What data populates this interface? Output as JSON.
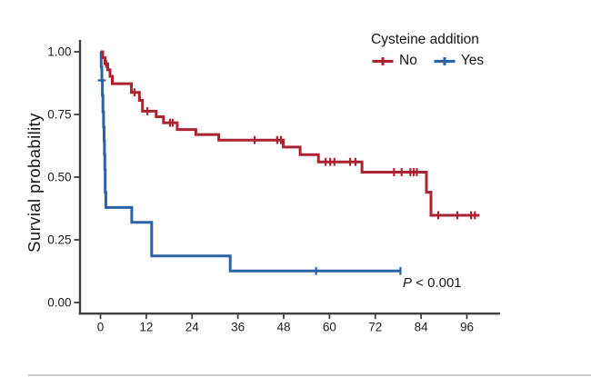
{
  "figure": {
    "background": "#ffffff",
    "bottom_border_color": "#cbcbcb"
  },
  "chart_data": {
    "type": "line",
    "subtype": "kaplan_meier_step",
    "title": "",
    "xlabel": "",
    "ylabel": "Survial probability",
    "xlim": [
      -5,
      105
    ],
    "ylim": [
      0,
      1.02
    ],
    "xticks": [
      0,
      12,
      24,
      36,
      48,
      60,
      72,
      84,
      96
    ],
    "yticks": [
      0,
      0.25,
      0.5,
      0.75,
      1
    ],
    "ytick_labels": [
      "0.00",
      "0.25",
      "0.50",
      "0.75",
      "1.00"
    ],
    "grid": false,
    "axis_color": "#3f3f3f",
    "tick_label_color": "#1c1c1c",
    "legend": {
      "title": "Cysteine addition",
      "position": "top-right",
      "entries": [
        {
          "label": "No",
          "color": "#ab2230"
        },
        {
          "label": "Yes",
          "color": "#2d63a5"
        }
      ]
    },
    "annotation": {
      "p_symbol": "P",
      "p_text": " < 0.001"
    },
    "series": [
      {
        "name": "No",
        "color": "#ab2230",
        "steps": [
          [
            0,
            1.0
          ],
          [
            0.6,
            0.976
          ],
          [
            1.2,
            0.952
          ],
          [
            1.9,
            0.928
          ],
          [
            2.5,
            0.902
          ],
          [
            3.1,
            0.873
          ],
          [
            8.1,
            0.838
          ],
          [
            10.2,
            0.806
          ],
          [
            11.0,
            0.763
          ],
          [
            14.6,
            0.741
          ],
          [
            16.5,
            0.717
          ],
          [
            20.1,
            0.69
          ],
          [
            25.0,
            0.67
          ],
          [
            31.0,
            0.648
          ],
          [
            47.9,
            0.62
          ],
          [
            52.3,
            0.59
          ],
          [
            57.1,
            0.561
          ],
          [
            68.5,
            0.52
          ],
          [
            85.4,
            0.44
          ],
          [
            86.6,
            0.348
          ],
          [
            99.3,
            0.348
          ]
        ],
        "censors": [
          [
            1.5,
            0.952
          ],
          [
            8.9,
            0.838
          ],
          [
            12.3,
            0.763
          ],
          [
            18.2,
            0.717
          ],
          [
            18.9,
            0.717
          ],
          [
            40.4,
            0.648
          ],
          [
            46.3,
            0.648
          ],
          [
            47.3,
            0.648
          ],
          [
            59.0,
            0.561
          ],
          [
            60.2,
            0.561
          ],
          [
            61.3,
            0.561
          ],
          [
            65.4,
            0.561
          ],
          [
            66.8,
            0.561
          ],
          [
            76.9,
            0.52
          ],
          [
            78.9,
            0.52
          ],
          [
            81.2,
            0.52
          ],
          [
            82.1,
            0.52
          ],
          [
            82.9,
            0.52
          ],
          [
            88.5,
            0.348
          ],
          [
            93.5,
            0.348
          ],
          [
            97.1,
            0.348
          ],
          [
            98.1,
            0.348
          ]
        ]
      },
      {
        "name": "Yes",
        "color": "#2d63a5",
        "steps": [
          [
            0,
            1.0
          ],
          [
            0.2,
            0.94
          ],
          [
            0.35,
            0.886
          ],
          [
            0.5,
            0.826
          ],
          [
            0.65,
            0.76
          ],
          [
            0.8,
            0.7
          ],
          [
            0.95,
            0.645
          ],
          [
            1.05,
            0.59
          ],
          [
            1.15,
            0.53
          ],
          [
            1.25,
            0.44
          ],
          [
            1.4,
            0.379
          ],
          [
            8.2,
            0.32
          ],
          [
            13.4,
            0.186
          ],
          [
            34.0,
            0.126
          ],
          [
            78.6,
            0.126
          ]
        ],
        "censors": [
          [
            0.35,
            0.886,
            "h"
          ],
          [
            56.5,
            0.126
          ],
          [
            78.6,
            0.126
          ]
        ]
      }
    ]
  }
}
